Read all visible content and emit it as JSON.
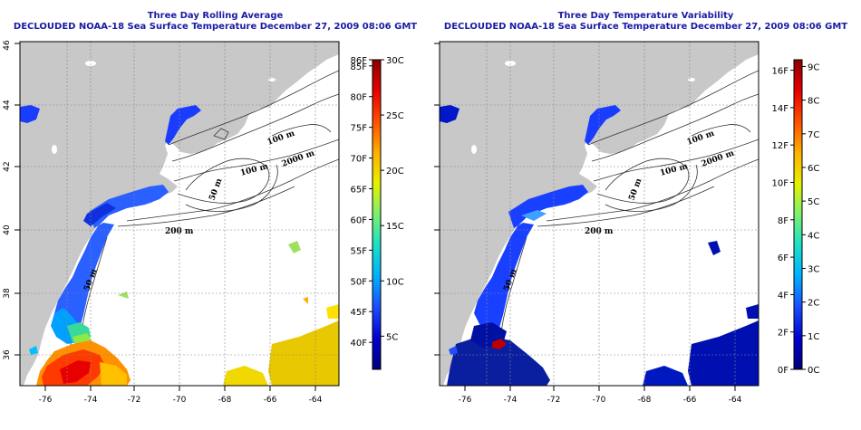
{
  "panels": [
    {
      "title": "Three Day Rolling Average",
      "subtitle": "DECLOUDED NOAA-18 Sea Surface Temperature December 27, 2009 08:06 GMT",
      "x_ticks": [
        "-76",
        "-74",
        "-72",
        "-70",
        "-68",
        "-66",
        "-64"
      ],
      "y_ticks": [
        "36",
        "38",
        "40",
        "42",
        "44",
        "46"
      ],
      "colorbar": {
        "colors": [
          "#00007a",
          "#0000d0",
          "#1a4cff",
          "#00b0ff",
          "#18e0c8",
          "#7cf070",
          "#e8f000",
          "#ffb000",
          "#ff5000",
          "#e80000",
          "#8a0000"
        ],
        "left_ticks": [
          "86F",
          "85F",
          "80F",
          "75F",
          "70F",
          "65F",
          "60F",
          "55F",
          "50F",
          "45F",
          "40F"
        ],
        "right_ticks": [
          "30C",
          "25C",
          "20C",
          "15C",
          "10C",
          "5C"
        ],
        "left_values": [
          86,
          85,
          80,
          75,
          70,
          65,
          60,
          55,
          50,
          45,
          40
        ],
        "right_values": [
          30,
          25,
          20,
          15,
          10,
          5
        ],
        "min_c": 2,
        "max_c": 30
      },
      "depth_labels": [
        "100 m",
        "100 m",
        "2000 m",
        "50 m",
        "200 m",
        "50 m"
      ]
    },
    {
      "title": "Three Day Temperature Variability",
      "subtitle": "DECLOUDED NOAA-18 Sea Surface Temperature December 27, 2009 08:06 GMT",
      "x_ticks": [
        "-76",
        "-74",
        "-72",
        "-70",
        "-68",
        "-66",
        "-64"
      ],
      "y_ticks": [
        "36",
        "38",
        "40",
        "42",
        "44",
        "46"
      ],
      "colorbar": {
        "colors": [
          "#00007a",
          "#0000d0",
          "#1a4cff",
          "#00b0ff",
          "#18e0c8",
          "#7cf070",
          "#e8f000",
          "#ffb000",
          "#ff5000",
          "#e80000",
          "#8a0000"
        ],
        "left_ticks": [
          "16F",
          "14F",
          "12F",
          "10F",
          "8F",
          "6F",
          "4F",
          "2F",
          "0F"
        ],
        "right_ticks": [
          "9C",
          "8C",
          "7C",
          "6C",
          "5C",
          "4C",
          "3C",
          "2C",
          "1C",
          "0C"
        ],
        "left_values": [
          16,
          14,
          12,
          10,
          8,
          6,
          4,
          2,
          0
        ],
        "right_values": [
          9,
          8,
          7,
          6,
          5,
          4,
          3,
          2,
          1,
          0
        ],
        "min_c": 0,
        "max_c": 9.2
      },
      "depth_labels": [
        "100 m",
        "100 m",
        "2000 m",
        "50 m",
        "200 m",
        "50 m"
      ]
    }
  ]
}
